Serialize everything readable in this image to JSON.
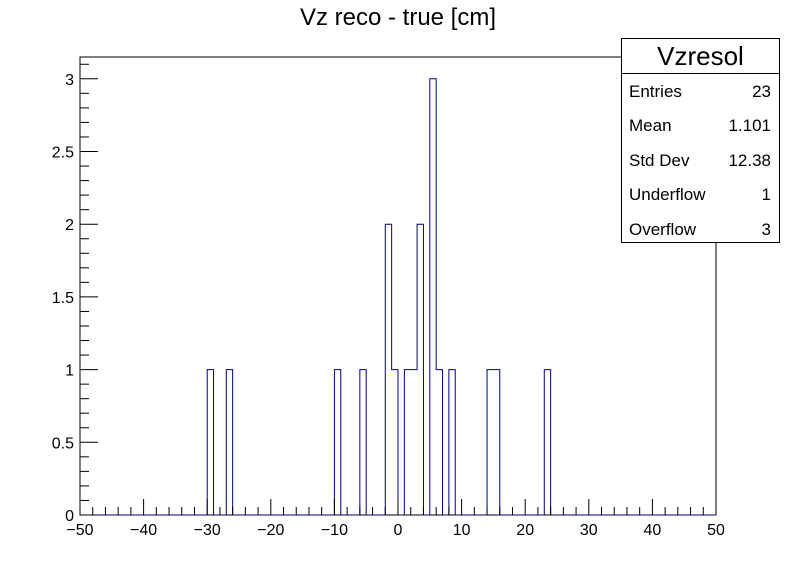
{
  "chart_data": {
    "type": "histogram",
    "title": "Vz reco - true [cm]",
    "xlim": [
      -50,
      50
    ],
    "ylim": [
      0,
      3.15
    ],
    "bin_width": 1,
    "line_color": "#000080",
    "x_ticks": [
      "−50",
      "−40",
      "−30",
      "−20",
      "−10",
      "0",
      "10",
      "20",
      "30",
      "40",
      "50"
    ],
    "y_ticks": [
      "0",
      "0.5",
      "1",
      "1.5",
      "2",
      "2.5",
      "3"
    ],
    "bins": [
      {
        "low": -30,
        "count": 1
      },
      {
        "low": -27,
        "count": 1
      },
      {
        "low": -10,
        "count": 1
      },
      {
        "low": -6,
        "count": 1
      },
      {
        "low": -2,
        "count": 2
      },
      {
        "low": -1,
        "count": 1
      },
      {
        "low": 1,
        "count": 1
      },
      {
        "low": 2,
        "count": 1
      },
      {
        "low": 3,
        "count": 2
      },
      {
        "low": 5,
        "count": 3
      },
      {
        "low": 6,
        "count": 1
      },
      {
        "low": 8,
        "count": 1
      },
      {
        "low": 14,
        "count": 1
      },
      {
        "low": 15,
        "count": 1
      },
      {
        "low": 23,
        "count": 1
      }
    ]
  },
  "stats_box": {
    "name": "Vzresol",
    "rows": [
      {
        "label": "Entries",
        "value": "23"
      },
      {
        "label": "Mean",
        "value": "1.101"
      },
      {
        "label": "Std Dev",
        "value": "12.38"
      },
      {
        "label": "Underflow",
        "value": "1"
      },
      {
        "label": "Overflow",
        "value": "3"
      }
    ]
  }
}
